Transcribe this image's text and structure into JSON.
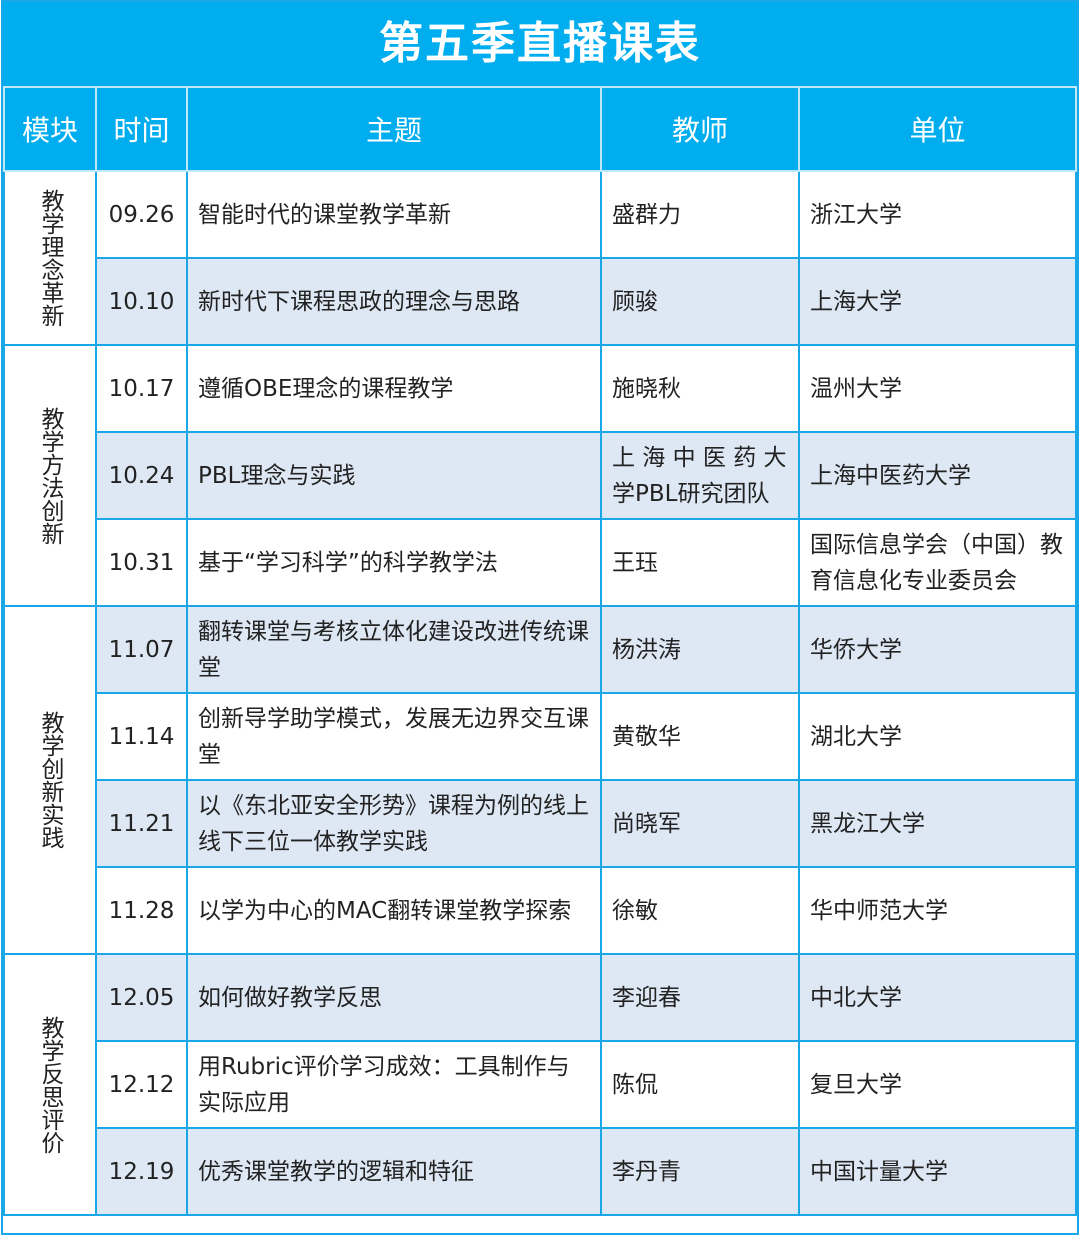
{
  "title": "第五季直播课表",
  "headers": [
    "模块",
    "时间",
    "主题",
    "教师",
    "单位"
  ],
  "colors": {
    "header": "#00aeef",
    "alt_row": "#dee8f4",
    "border": "#1aa7e8"
  },
  "modules": [
    {
      "name": "教学理念革新",
      "rows": [
        {
          "date": "09.26",
          "topic": "智能时代的课堂教学革新",
          "teacher": "盛群力",
          "unit": "浙江大学"
        },
        {
          "date": "10.10",
          "topic": "新时代下课程思政的理念与思路",
          "teacher": "顾骏",
          "unit": "上海大学"
        }
      ]
    },
    {
      "name": "教学方法创新",
      "rows": [
        {
          "date": "10.17",
          "topic": "遵循OBE理念的课程教学",
          "teacher": "施晓秋",
          "unit": "温州大学"
        },
        {
          "date": "10.24",
          "topic": "PBL理念与实践",
          "teacher": "上 海 中 医 药 大 学PBL研究团队",
          "unit": "上海中医药大学"
        },
        {
          "date": "10.31",
          "topic": "基于“学习科学”的科学教学法",
          "teacher": "王珏",
          "unit": "国际信息学会（中国）教育信息化专业委员会"
        }
      ]
    },
    {
      "name": "教学创新实践",
      "rows": [
        {
          "date": "11.07",
          "topic": "翻转课堂与考核立体化建设改进传统课堂",
          "teacher": "杨洪涛",
          "unit": "华侨大学"
        },
        {
          "date": "11.14",
          "topic": "创新导学助学模式，发展无边界交互课堂",
          "teacher": "黄敬华",
          "unit": "湖北大学"
        },
        {
          "date": "11.21",
          "topic": "以《东北亚安全形势》课程为例的线上线下三位一体教学实践",
          "teacher": "尚晓军",
          "unit": "黑龙江大学"
        },
        {
          "date": "11.28",
          "topic": "以学为中心的MAC翻转课堂教学探索",
          "teacher": "徐敏",
          "unit": "华中师范大学"
        }
      ]
    },
    {
      "name": "教学反思评价",
      "rows": [
        {
          "date": "12.05",
          "topic": "如何做好教学反思",
          "teacher": "李迎春",
          "unit": "中北大学"
        },
        {
          "date": "12.12",
          "topic": "用Rubric评价学习成效：工具制作与实际应用",
          "teacher": "陈侃",
          "unit": "复旦大学"
        },
        {
          "date": "12.19",
          "topic": "优秀课堂教学的逻辑和特征",
          "teacher": "李丹青",
          "unit": "中国计量大学"
        }
      ]
    }
  ]
}
